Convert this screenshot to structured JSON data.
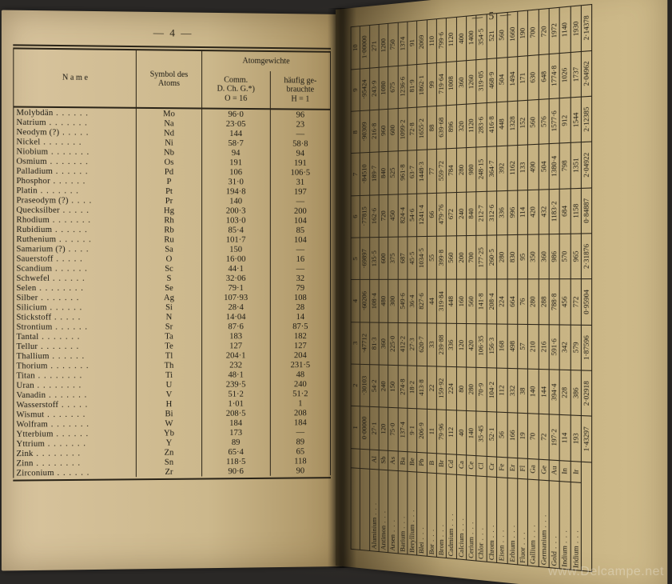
{
  "leftPage": {
    "pageNumber": "— 4 —",
    "headers": {
      "name": "N a m e",
      "symbol": "Symbol des\nAtoms",
      "group": "Atomgewichte",
      "comm": "Comm.\nD. Ch. G.*)\nO = 16",
      "haufig": "häufig ge-\nbrauchte\nH = 1"
    },
    "rows": [
      {
        "name": "Molybdän",
        "sym": "Mo",
        "comm": "96·0",
        "h": "96"
      },
      {
        "name": "Natrium",
        "sym": "Na",
        "comm": "23·05",
        "h": "23"
      },
      {
        "name": "Neodym (?)",
        "sym": "Nd",
        "comm": "144",
        "h": "—"
      },
      {
        "name": "Nickel",
        "sym": "Ni",
        "comm": "58·7",
        "h": "58·8"
      },
      {
        "name": "Niobium",
        "sym": "Nb",
        "comm": "94",
        "h": "94"
      },
      {
        "name": "Osmium",
        "sym": "Os",
        "comm": "191",
        "h": "191"
      },
      {
        "name": "Palladium",
        "sym": "Pd",
        "comm": "106",
        "h": "106·5"
      },
      {
        "name": "Phosphor",
        "sym": "P",
        "comm": "31·0",
        "h": "31"
      },
      {
        "name": "Platin",
        "sym": "Pt",
        "comm": "194·8",
        "h": "197"
      },
      {
        "name": "Praseodym (?)",
        "sym": "Pr",
        "comm": "140",
        "h": "—"
      },
      {
        "name": "Quecksilber",
        "sym": "Hg",
        "comm": "200·3",
        "h": "200"
      },
      {
        "name": "Rhodium",
        "sym": "Rh",
        "comm": "103·0",
        "h": "104"
      },
      {
        "name": "Rubidium",
        "sym": "Rb",
        "comm": "85·4",
        "h": "85"
      },
      {
        "name": "Ruthenium",
        "sym": "Ru",
        "comm": "101·7",
        "h": "104"
      },
      {
        "name": "Samarium (?)",
        "sym": "Sa",
        "comm": "150",
        "h": "—"
      },
      {
        "name": "Sauerstoff",
        "sym": "O",
        "comm": "16·00",
        "h": "16"
      },
      {
        "name": "Scandium",
        "sym": "Sc",
        "comm": "44·1",
        "h": "—"
      },
      {
        "name": "Schwefel",
        "sym": "S",
        "comm": "32·06",
        "h": "32"
      },
      {
        "name": "Selen",
        "sym": "Se",
        "comm": "79·1",
        "h": "79"
      },
      {
        "name": "Silber",
        "sym": "Ag",
        "comm": "107·93",
        "h": "108"
      },
      {
        "name": "Silicium",
        "sym": "Si",
        "comm": "28·4",
        "h": "28"
      },
      {
        "name": "Stickstoff",
        "sym": "N",
        "comm": "14·04",
        "h": "14"
      },
      {
        "name": "Strontium",
        "sym": "Sr",
        "comm": "87·6",
        "h": "87·5"
      },
      {
        "name": "Tantal",
        "sym": "Ta",
        "comm": "183",
        "h": "182"
      },
      {
        "name": "Tellur",
        "sym": "Te",
        "comm": "127",
        "h": "127"
      },
      {
        "name": "Thallium",
        "sym": "Tl",
        "comm": "204·1",
        "h": "204"
      },
      {
        "name": "Thorium",
        "sym": "Th",
        "comm": "232",
        "h": "231·5"
      },
      {
        "name": "Titan",
        "sym": "Ti",
        "comm": "48·1",
        "h": "48"
      },
      {
        "name": "Uran",
        "sym": "U",
        "comm": "239·5",
        "h": "240"
      },
      {
        "name": "Vanadin",
        "sym": "V",
        "comm": "51·2",
        "h": "51·2"
      },
      {
        "name": "Wasserstoff",
        "sym": "H",
        "comm": "1·01",
        "h": "1"
      },
      {
        "name": "Wismut",
        "sym": "Bi",
        "comm": "208·5",
        "h": "208"
      },
      {
        "name": "Wolfram",
        "sym": "W",
        "comm": "184",
        "h": "184"
      },
      {
        "name": "Ytterbium",
        "sym": "Yb",
        "comm": "173",
        "h": "—"
      },
      {
        "name": "Yttrium",
        "sym": "Y",
        "comm": "89",
        "h": "89"
      },
      {
        "name": "Zink",
        "sym": "Zn",
        "comm": "65·4",
        "h": "65"
      },
      {
        "name": "Zinn",
        "sym": "Sn",
        "comm": "118·5",
        "h": "118"
      },
      {
        "name": "Zirconium",
        "sym": "Zr",
        "comm": "90·6",
        "h": "90"
      }
    ]
  },
  "rightPage": {
    "pageNumber": "— 5 —",
    "colHeads": [
      "1",
      "2",
      "3",
      "4",
      "5",
      "6",
      "7",
      "8",
      "9",
      "10"
    ],
    "colFactors": [
      "0·00000",
      "·30103",
      "·47712",
      "·60206",
      "·69897",
      "·77815",
      "·84510",
      "·90309",
      "·95424",
      "1·00000"
    ],
    "topLog": [
      "1·43297",
      "2·02918",
      "1·87596",
      "0·95904",
      "2·31876",
      "0·84887",
      "2·04922",
      "2·12385",
      "2·04962",
      "2·14378",
      "1·71784",
      "1·98984",
      "1·74275",
      "2·25011",
      "1·29878",
      "1·88763",
      "2·28491",
      "2·06790",
      "2·28535"
    ],
    "rows": [
      {
        "name": "Aluminium",
        "sym": "Al",
        "v": [
          "27·1",
          "54·2",
          "81·3",
          "108·4",
          "135·5",
          "162·6",
          "189·7",
          "216·8",
          "243·9",
          "271"
        ]
      },
      {
        "name": "Antimon",
        "sym": "Sb",
        "v": [
          "120",
          "240",
          "360",
          "480",
          "600",
          "720",
          "840",
          "960",
          "1080",
          "1200"
        ]
      },
      {
        "name": "Arsen",
        "sym": "As",
        "v": [
          "75·0",
          "150",
          "225·0",
          "300",
          "375",
          "450",
          "525",
          "600",
          "675",
          "750"
        ]
      },
      {
        "name": "Barium",
        "sym": "Ba",
        "v": [
          "137·4",
          "274·8",
          "412·2",
          "549·6",
          "687",
          "824·4",
          "961·8",
          "1099·2",
          "1236·6",
          "1374"
        ]
      },
      {
        "name": "Beryllium",
        "sym": "Be",
        "v": [
          "9·1",
          "18·2",
          "27·3",
          "36·4",
          "45·5",
          "54·6",
          "63·7",
          "72·8",
          "81·9",
          "91"
        ]
      },
      {
        "name": "Blei",
        "sym": "Pb",
        "v": [
          "206·9",
          "413·8",
          "620·7",
          "827·6",
          "1034·5",
          "1241·4",
          "1448·3",
          "1655·2",
          "1862·1",
          "2069"
        ]
      },
      {
        "name": "Bor",
        "sym": "B",
        "v": [
          "11",
          "22",
          "33",
          "44",
          "55",
          "66",
          "77",
          "88",
          "99",
          "110"
        ]
      },
      {
        "name": "Brom",
        "sym": "Br",
        "v": [
          "79·96",
          "159·92",
          "239·88",
          "319·84",
          "399·8",
          "479·76",
          "559·72",
          "639·68",
          "719·64",
          "799·6"
        ]
      },
      {
        "name": "Cadmium",
        "sym": "Cd",
        "v": [
          "112",
          "224",
          "336",
          "448",
          "560",
          "672",
          "784",
          "896",
          "1008",
          "1120"
        ]
      },
      {
        "name": "Calcium",
        "sym": "Ca",
        "v": [
          "40",
          "80",
          "120",
          "160",
          "200",
          "240",
          "280",
          "320",
          "360",
          "400"
        ]
      },
      {
        "name": "Cerium",
        "sym": "Ce",
        "v": [
          "140",
          "280",
          "420",
          "560",
          "700",
          "840",
          "980",
          "1120",
          "1260",
          "1400"
        ]
      },
      {
        "name": "Chlor",
        "sym": "Cl",
        "v": [
          "35·45",
          "70·9",
          "106·35",
          "141·8",
          "177·25",
          "212·7",
          "248·15",
          "283·6",
          "319·05",
          "354·5"
        ]
      },
      {
        "name": "Chrom",
        "sym": "Cr",
        "v": [
          "52·1",
          "104·2",
          "156·3",
          "208·4",
          "260·5",
          "312·6",
          "364·7",
          "416·8",
          "468·9",
          "521"
        ]
      },
      {
        "name": "Eisen",
        "sym": "Fe",
        "v": [
          "56",
          "112",
          "168",
          "224",
          "280",
          "336",
          "392",
          "448",
          "504",
          "560"
        ]
      },
      {
        "name": "Erbium",
        "sym": "Er",
        "v": [
          "166",
          "332",
          "498",
          "664",
          "830",
          "996",
          "1162",
          "1328",
          "1494",
          "1660"
        ]
      },
      {
        "name": "Fluor",
        "sym": "Fl",
        "v": [
          "19",
          "38",
          "57",
          "76",
          "95",
          "114",
          "133",
          "152",
          "171",
          "190"
        ]
      },
      {
        "name": "Gallium",
        "sym": "Ga",
        "v": [
          "70",
          "140",
          "210",
          "280",
          "350",
          "420",
          "490",
          "560",
          "630",
          "700"
        ]
      },
      {
        "name": "Germanium",
        "sym": "Ge",
        "v": [
          "72",
          "144",
          "216",
          "288",
          "360",
          "432",
          "504",
          "576",
          "648",
          "720"
        ]
      },
      {
        "name": "Gold",
        "sym": "Au",
        "v": [
          "197·2",
          "394·4",
          "591·6",
          "788·8",
          "986",
          "1183·2",
          "1380·4",
          "1577·6",
          "1774·8",
          "1972"
        ]
      },
      {
        "name": "Indium",
        "sym": "In",
        "v": [
          "114",
          "228",
          "342",
          "456",
          "570",
          "684",
          "798",
          "912",
          "1026",
          "1140"
        ]
      },
      {
        "name": "Iridium",
        "sym": "Ir",
        "v": [
          "193",
          "386",
          "579",
          "772",
          "965",
          "1158",
          "1351",
          "1544",
          "1737",
          "1930"
        ]
      }
    ]
  },
  "watermark": "www.Delcampe.net",
  "style": {
    "paperLight": "#d8c49e",
    "paperDark": "#a89060",
    "ink": "#1a1812",
    "border": "#2a2418",
    "bodyFontPt": 10.5,
    "headFontPt": 10,
    "rightFontPt": 8.5
  }
}
